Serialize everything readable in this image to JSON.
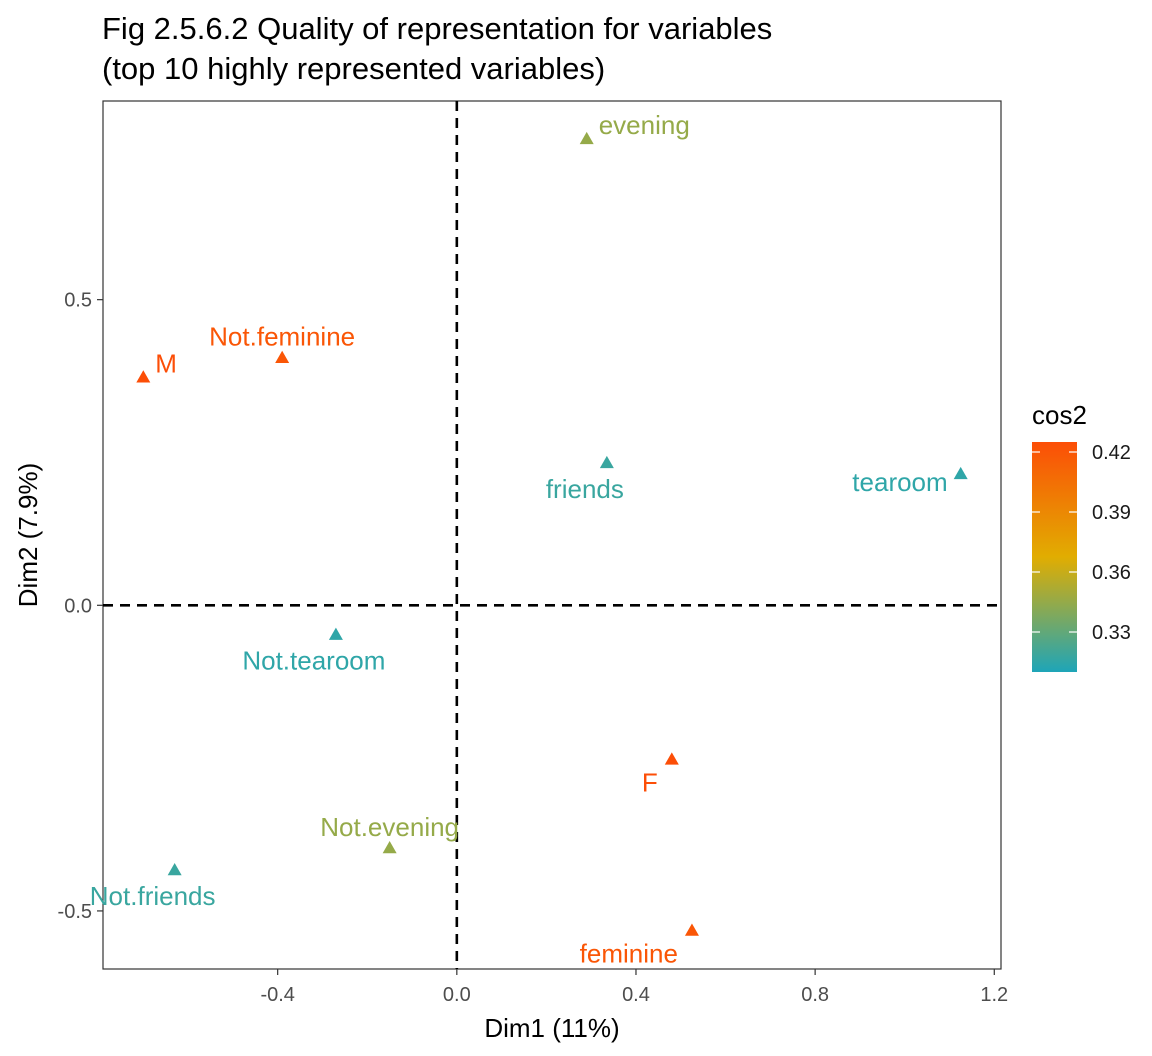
{
  "chart_data": {
    "type": "scatter",
    "title": "Fig 2.5.6.2 Quality of representation for variables",
    "subtitle": "(top 10 highly represented variables)",
    "xlabel": "Dim1 (11%)",
    "ylabel": "Dim2 (7.9%)",
    "xlim": [
      -0.79,
      1.215
    ],
    "ylim": [
      -0.595,
      0.825
    ],
    "xticks": [
      -0.4,
      0.0,
      0.4,
      0.8,
      1.2
    ],
    "xtick_labels": [
      "-0.4",
      "0.0",
      "0.4",
      "0.8",
      "1.2"
    ],
    "yticks": [
      -0.5,
      0.0,
      0.5
    ],
    "ytick_labels": [
      "-0.5",
      "0.0",
      "0.5"
    ],
    "grid": false,
    "reference_lines": [
      {
        "axis": "x",
        "value": 0,
        "style": "dashed"
      },
      {
        "axis": "y",
        "value": 0,
        "style": "dashed"
      }
    ],
    "marker": "triangle",
    "points": [
      {
        "label": "evening",
        "x": 0.29,
        "y": 0.763,
        "cos2": 0.345,
        "label_pos": "right"
      },
      {
        "label": "M",
        "x": -0.7,
        "y": 0.373,
        "cos2": 0.425,
        "label_pos": "right"
      },
      {
        "label": "Not.feminine",
        "x": -0.39,
        "y": 0.405,
        "cos2": 0.42,
        "label_pos": "above"
      },
      {
        "label": "friends",
        "x": 0.335,
        "y": 0.233,
        "cos2": 0.318,
        "label_pos": "below"
      },
      {
        "label": "tearoom",
        "x": 1.125,
        "y": 0.215,
        "cos2": 0.315,
        "label_pos": "left"
      },
      {
        "label": "Not.tearoom",
        "x": -0.27,
        "y": -0.048,
        "cos2": 0.315,
        "label_pos": "below"
      },
      {
        "label": "F",
        "x": 0.48,
        "y": -0.252,
        "cos2": 0.425,
        "label_pos": "below-left"
      },
      {
        "label": "Not.evening",
        "x": -0.15,
        "y": -0.397,
        "cos2": 0.345,
        "label_pos": "above"
      },
      {
        "label": "Not.friends",
        "x": -0.63,
        "y": -0.433,
        "cos2": 0.318,
        "label_pos": "below"
      },
      {
        "label": "feminine",
        "x": 0.525,
        "y": -0.532,
        "cos2": 0.42,
        "label_pos": "below-left"
      }
    ],
    "legend": {
      "title": "cos2",
      "placement": "right",
      "range": [
        0.31,
        0.425
      ],
      "breaks": [
        0.42,
        0.39,
        0.36,
        0.33
      ],
      "break_labels": [
        "0.42",
        "0.39",
        "0.36",
        "0.33"
      ],
      "colors": {
        "low": "#1ea5b8",
        "mid": "#e1ad01",
        "high": "#fc4e07"
      }
    }
  }
}
